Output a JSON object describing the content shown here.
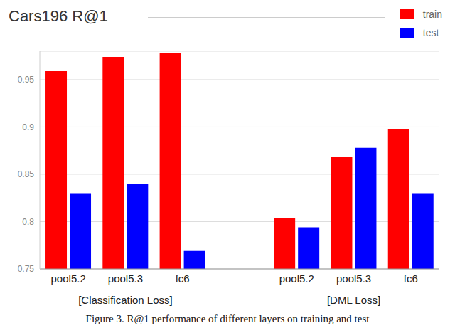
{
  "chart_data": {
    "type": "bar",
    "title": "Cars196 R@1",
    "caption": "Figure 3. R@1 performance of different layers on training and test",
    "categories": [
      "pool5.2",
      "pool5.3",
      "fc6",
      null,
      "pool5.2",
      "pool5.3",
      "fc6"
    ],
    "group_labels": [
      "[Classification Loss]",
      "[DML Loss]"
    ],
    "series": [
      {
        "name": "train",
        "color": "#ff0000",
        "values": [
          0.959,
          0.974,
          0.978,
          null,
          0.804,
          0.868,
          0.898
        ]
      },
      {
        "name": "test",
        "color": "#0000ff",
        "values": [
          0.83,
          0.84,
          0.769,
          null,
          0.794,
          0.878,
          0.83
        ]
      }
    ],
    "ylim": [
      0.75,
      0.98
    ],
    "yticks": [
      0.75,
      0.8,
      0.85,
      0.9,
      0.95
    ],
    "grid": true,
    "legend": "upper right"
  }
}
